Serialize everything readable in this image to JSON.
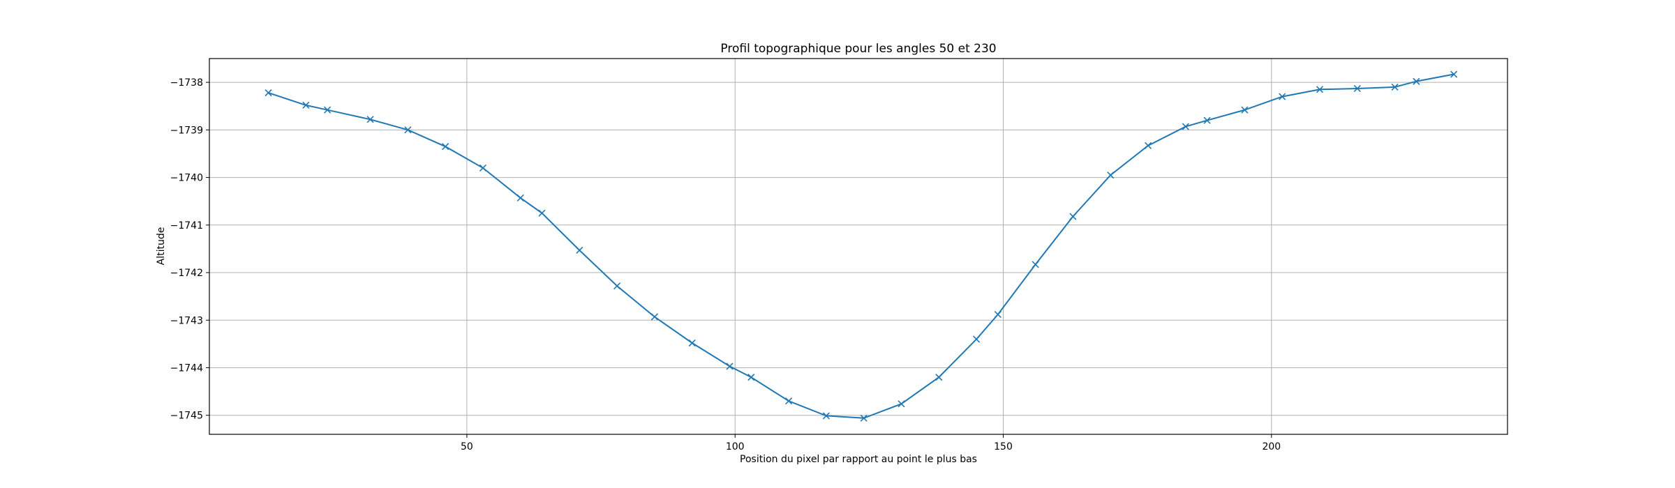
{
  "chart_data": {
    "type": "line",
    "title": "Profil topographique pour les angles 50 et 230",
    "xlabel": "Position du pixel par rapport au point le plus bas",
    "ylabel": "Altitude",
    "xlim": [
      2,
      244
    ],
    "ylim": [
      -1745.4,
      -1737.5
    ],
    "xticks": [
      50,
      100,
      150,
      200
    ],
    "yticks": [
      -1738,
      -1739,
      -1740,
      -1741,
      -1742,
      -1743,
      -1744,
      -1745
    ],
    "grid": true,
    "marker": "x",
    "series": [
      {
        "color": "#1f77b4",
        "x": [
          13,
          20,
          24,
          32,
          39,
          46,
          53,
          60,
          64,
          71,
          78,
          85,
          92,
          99,
          103,
          110,
          117,
          124,
          131,
          138,
          145,
          149,
          156,
          163,
          170,
          177,
          184,
          188,
          195,
          202,
          209,
          216,
          223,
          227,
          234
        ],
        "y": [
          -1738.22,
          -1738.48,
          -1738.58,
          -1738.78,
          -1739.0,
          -1739.35,
          -1739.8,
          -1740.43,
          -1740.75,
          -1741.53,
          -1742.28,
          -1742.93,
          -1743.48,
          -1743.97,
          -1744.2,
          -1744.7,
          -1745.01,
          -1745.06,
          -1744.76,
          -1744.2,
          -1743.4,
          -1742.88,
          -1741.83,
          -1740.82,
          -1739.95,
          -1739.33,
          -1738.93,
          -1738.8,
          -1738.58,
          -1738.3,
          -1738.15,
          -1738.13,
          -1738.1,
          -1737.98,
          -1737.83
        ]
      }
    ]
  }
}
